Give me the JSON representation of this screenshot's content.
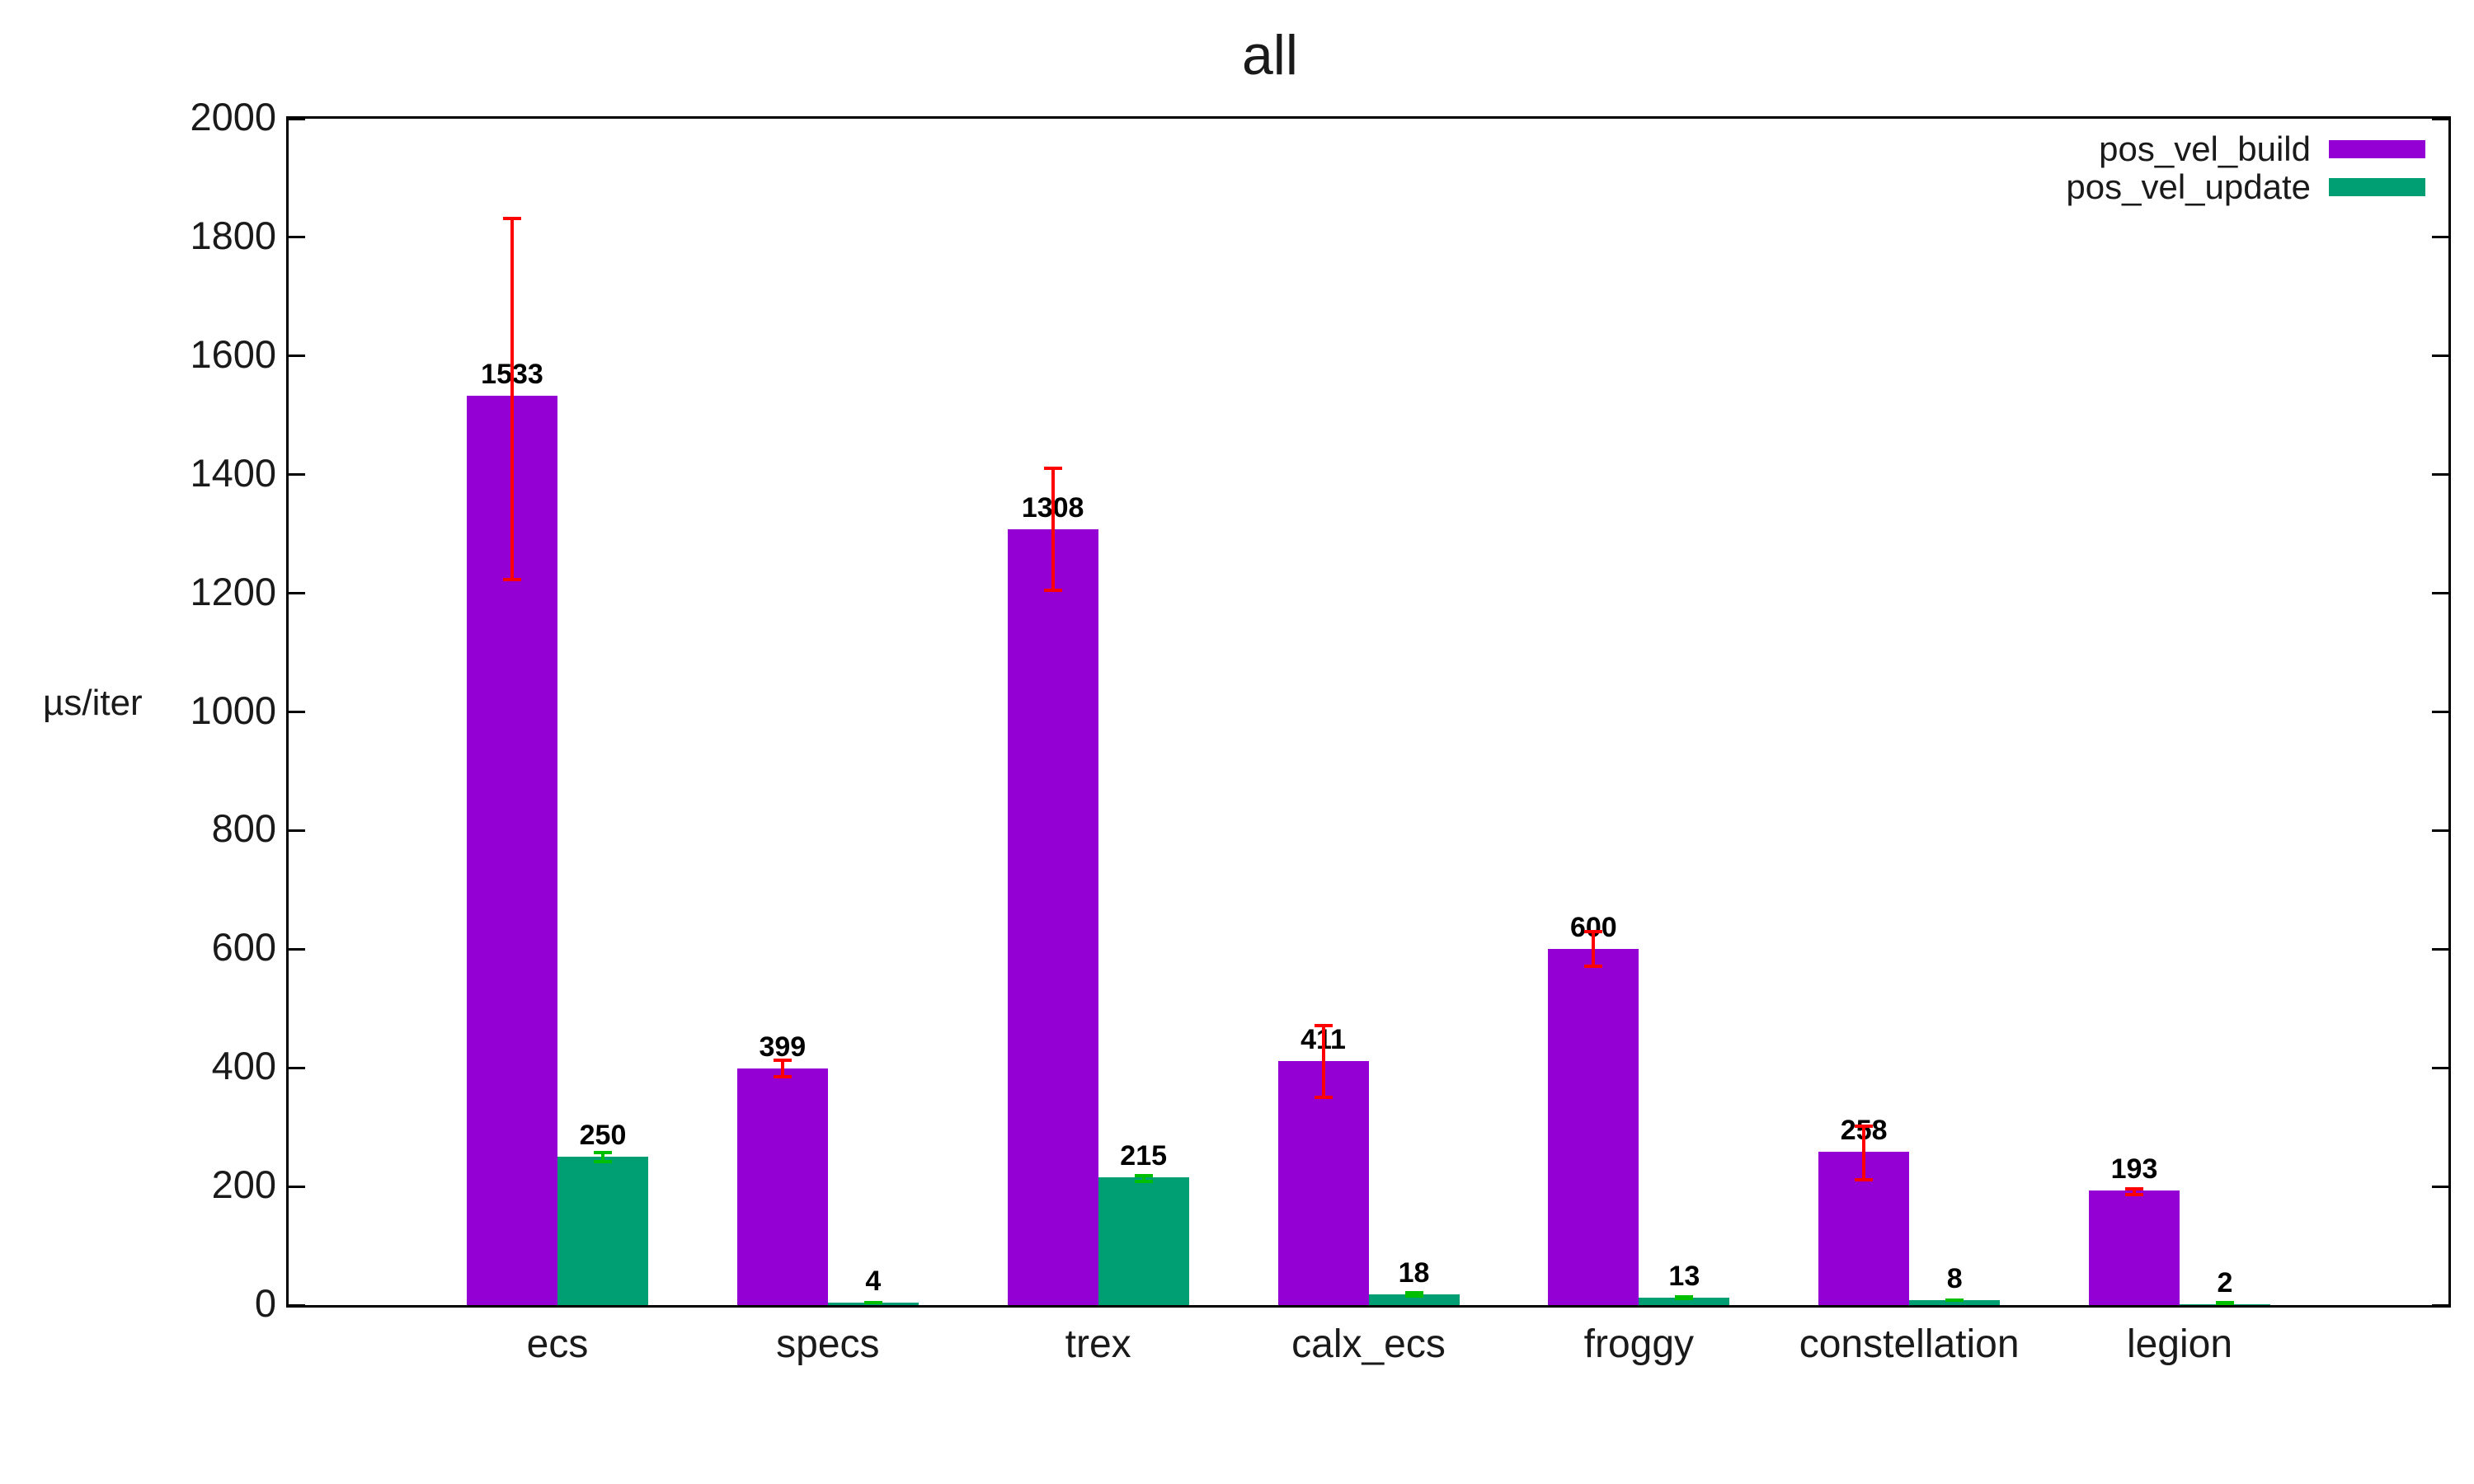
{
  "title": "all",
  "y_axis": {
    "label": "µs/iter"
  },
  "chart_data": {
    "type": "bar",
    "title": "all",
    "xlabel": "",
    "ylabel": "µs/iter",
    "ylim": [
      0,
      2000
    ],
    "y_ticks": [
      0,
      200,
      400,
      600,
      800,
      1000,
      1200,
      1400,
      1600,
      1800,
      2000
    ],
    "grid": false,
    "legend_position": "top-right",
    "categories": [
      "ecs",
      "specs",
      "trex",
      "calx_ecs",
      "froggy",
      "constellation",
      "legion"
    ],
    "series": [
      {
        "name": "pos_vel_build",
        "color": "#9400D3",
        "error_color": "#FF0000",
        "values": [
          1533,
          399,
          1308,
          411,
          600,
          258,
          193
        ],
        "err_low": [
          1220,
          382,
          1202,
          347,
          568,
          209,
          184
        ],
        "err_high": [
          1835,
          416,
          1414,
          474,
          632,
          305,
          199
        ]
      },
      {
        "name": "pos_vel_update",
        "color": "#009E73",
        "error_color": "#00BE00",
        "values": [
          250,
          4,
          215,
          18,
          13,
          8,
          2
        ],
        "err_low": [
          239,
          1,
          206,
          12,
          9,
          5,
          1
        ],
        "err_high": [
          260,
          7,
          221,
          24,
          17,
          11,
          5
        ]
      }
    ]
  }
}
